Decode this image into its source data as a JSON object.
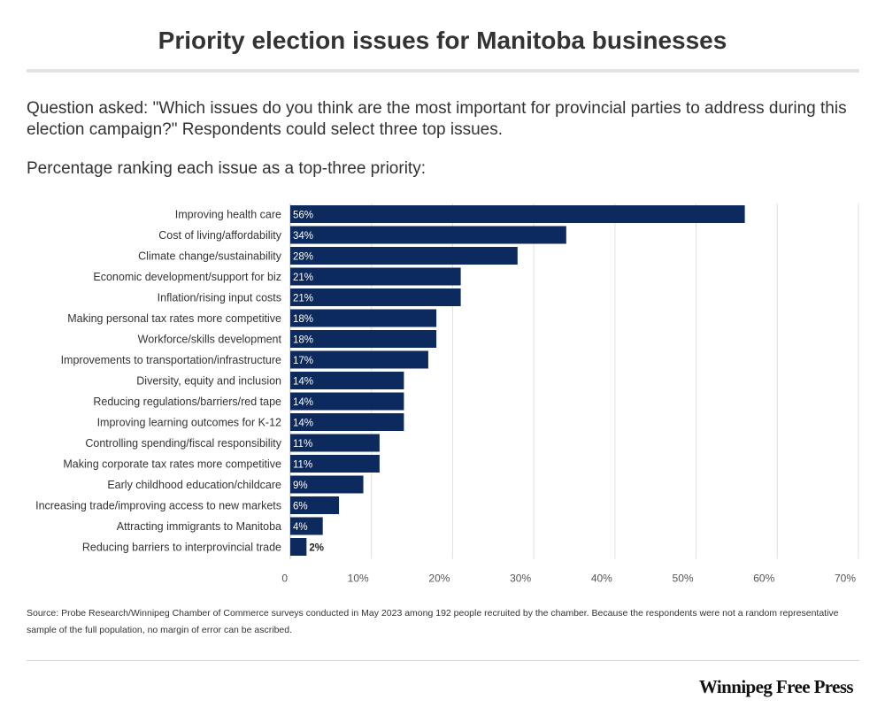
{
  "title": "Priority election issues for Manitoba businesses",
  "question": "Question asked: \"Which issues do you think are the most important for provincial parties to address during this election campaign?\" Respondents could select three top issues.",
  "subtitle": "Percentage ranking each issue as a top-three priority:",
  "source": "Source: Probe Research/Winnipeg Chamber of Commerce surveys conducted in May 2023 among 192 people recruited by the chamber. Because the respondents were not a random representative sample of the full population, no margin of error can be ascribed.",
  "logo": "Winnipeg Free Press",
  "colors": {
    "bar": "#0d2a5e",
    "label_inside": "#ffffff",
    "label_outside": "#222222",
    "grid": "#e0e0e0"
  },
  "chart_data": {
    "type": "bar",
    "orientation": "horizontal",
    "title": "Priority election issues for Manitoba businesses",
    "categories": [
      "Improving health care",
      "Cost of living/affordability",
      "Climate change/sustainability",
      "Economic development/support for biz",
      "Inflation/rising input costs",
      "Making personal tax rates more competitive",
      "Workforce/skills development",
      "Improvements to transportation/infrastructure",
      "Diversity, equity and inclusion",
      "Reducing regulations/barriers/red tape",
      "Improving learning outcomes for K-12",
      "Controlling spending/fiscal responsibility",
      "Making corporate tax rates more competitive",
      "Early childhood education/childcare",
      "Increasing trade/improving access to new markets",
      "Attracting immigrants to Manitoba",
      "Reducing barriers to interprovincial trade"
    ],
    "values": [
      56,
      34,
      28,
      21,
      21,
      18,
      18,
      17,
      14,
      14,
      14,
      11,
      11,
      9,
      6,
      4,
      2
    ],
    "value_labels": [
      "56%",
      "34%",
      "28%",
      "21%",
      "21%",
      "18%",
      "18%",
      "17%",
      "14%",
      "14%",
      "14%",
      "11%",
      "11%",
      "9%",
      "6%",
      "4%",
      "2%"
    ],
    "xlim": [
      0,
      70
    ],
    "xticks": [
      0,
      10,
      20,
      30,
      40,
      50,
      60,
      70
    ],
    "xtick_labels": [
      "0",
      "10%",
      "20%",
      "30%",
      "40%",
      "50%",
      "60%",
      "70%"
    ],
    "grid": true
  }
}
